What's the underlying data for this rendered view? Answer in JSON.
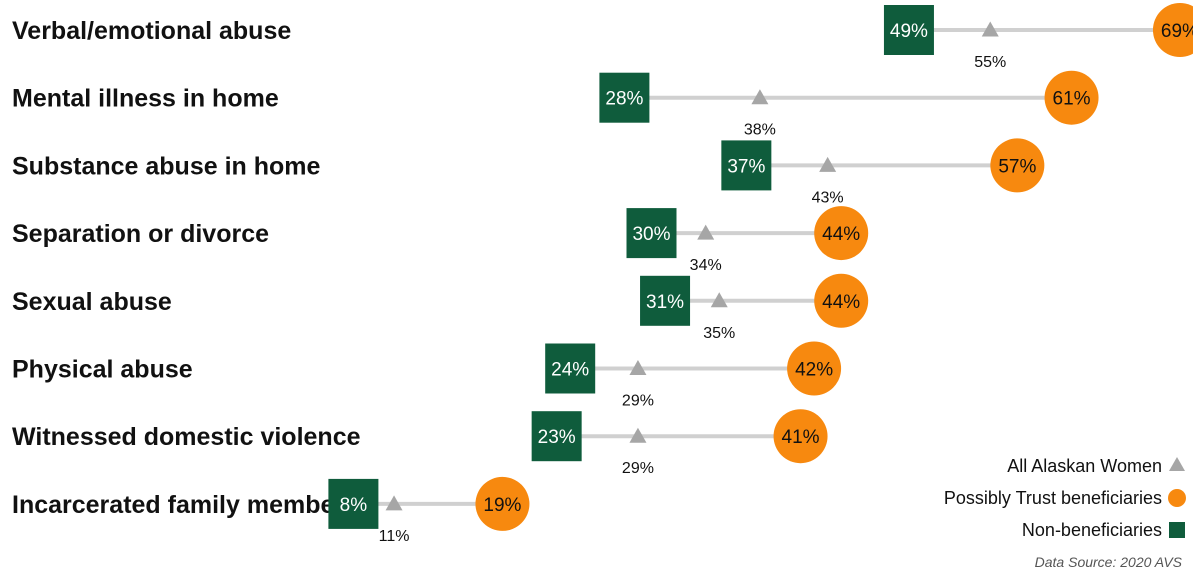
{
  "chart_data": {
    "type": "dumbbell",
    "categories": [
      "Verbal/emotional abuse",
      "Mental illness in home",
      "Substance abuse in home",
      "Separation or divorce",
      "Sexual abuse",
      "Physical abuse",
      "Witnessed domestic violence",
      "Incarcerated family member"
    ],
    "series": [
      {
        "name": "Non-beneficiaries",
        "marker": "square",
        "color": "#0f5c3c",
        "text_color": "#ffffff",
        "values": [
          49,
          28,
          37,
          30,
          31,
          24,
          23,
          8
        ]
      },
      {
        "name": "All Alaskan Women",
        "marker": "triangle",
        "color": "#a6a6a6",
        "text_color": "#111111",
        "values": [
          55,
          38,
          43,
          34,
          35,
          29,
          29,
          11
        ]
      },
      {
        "name": "Possibly Trust beneficiaries",
        "marker": "circle",
        "color": "#f7890f",
        "text_color": "#111111",
        "values": [
          69,
          61,
          57,
          44,
          44,
          42,
          41,
          19
        ]
      }
    ],
    "value_suffix": "%",
    "xlim": [
      0,
      70
    ],
    "connector_color": "#d0d0d0",
    "legend_position": "bottom-right",
    "grid": false
  },
  "source_note": "Data Source: 2020 AVS"
}
